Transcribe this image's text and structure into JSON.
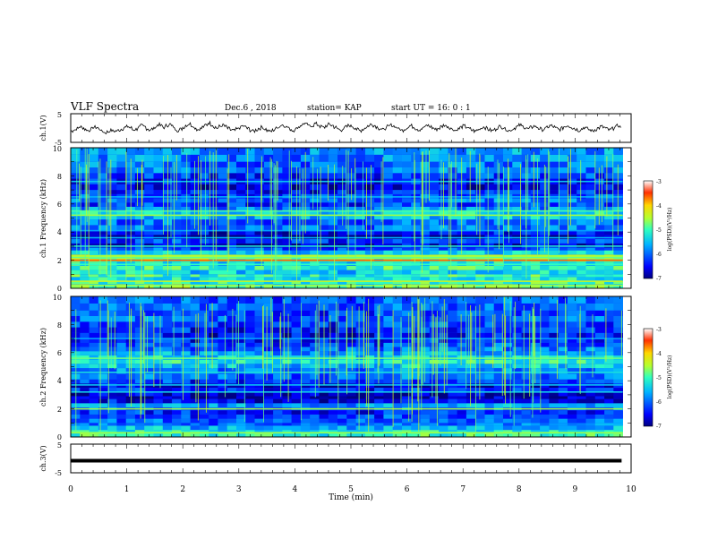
{
  "header": {
    "title": "VLF Spectra",
    "date": "Dec.6 , 2018",
    "station": "station= KAP",
    "start": "start UT = 16: 0 : 1"
  },
  "chart_data": [
    {
      "type": "line",
      "name": "ch1-voltage",
      "ylabel": "ch.1(V)",
      "ylim": [
        -5,
        5
      ],
      "y_ticks": [
        "5",
        "-5"
      ],
      "xlim": [
        0,
        10
      ],
      "x_step_min": 0.05,
      "values": [
        -1.0,
        -0.6,
        -0.2,
        0.4,
        0.1,
        -0.5,
        -0.9,
        -0.3,
        0.3,
        0.2,
        -0.4,
        -1.2,
        -1.6,
        -1.3,
        -0.8,
        -1.1,
        -1.0,
        -0.7,
        -0.3,
        0.2,
        0.5,
        0.1,
        -0.6,
        -0.4,
        0.3,
        0.8,
        0.5,
        -0.2,
        -0.7,
        -0.3,
        0.4,
        1.2,
        0.8,
        0.2,
        0.9,
        1.3,
        0.6,
        -0.3,
        -0.8,
        -0.4,
        0.3,
        1.0,
        1.5,
        0.9,
        0.1,
        -0.5,
        -0.2,
        0.4,
        1.1,
        1.8,
        1.2,
        0.4,
        0.0,
        0.6,
        1.0,
        0.5,
        -0.2,
        -0.7,
        -0.9,
        -0.4,
        0.1,
        0.7,
        0.4,
        -0.2,
        -0.8,
        -1.1,
        -0.6,
        -0.1,
        0.3,
        -0.3,
        -0.9,
        -1.2,
        -0.7,
        -0.1,
        0.5,
        1.1,
        0.8,
        0.3,
        -0.4,
        -0.8,
        -0.3,
        0.4,
        1.0,
        1.6,
        1.2,
        0.6,
        0.9,
        1.5,
        1.1,
        0.5,
        0.2,
        0.8,
        1.3,
        0.9,
        0.3,
        -0.3,
        -0.7,
        -0.2,
        0.4,
        0.9,
        0.6,
        0.1,
        -0.5,
        -0.9,
        -0.4,
        0.2,
        0.8,
        1.3,
        0.9,
        0.4,
        -0.2,
        -0.6,
        -0.1,
        0.5,
        1.0,
        0.7,
        0.2,
        -0.4,
        -0.8,
        -0.3,
        0.3,
        0.8,
        0.4,
        -0.2,
        -0.6,
        -0.2,
        0.4,
        0.9,
        0.5,
        0.0,
        -0.5,
        -0.1,
        0.5,
        1.0,
        0.6,
        0.1,
        -0.4,
        -0.8,
        -0.3,
        0.3,
        0.7,
        0.3,
        -0.3,
        -0.8,
        -1.1,
        -0.6,
        -0.1,
        0.4,
        0.0,
        -0.6,
        -0.9,
        -0.5,
        0.1,
        0.6,
        0.2,
        -0.4,
        -0.9,
        -0.6,
        0.0,
        0.5,
        1.0,
        0.6,
        0.1,
        -0.3,
        0.2,
        0.7,
        0.3,
        -0.2,
        -0.6,
        -0.2,
        0.4,
        0.8,
        0.4,
        -0.1,
        -0.5,
        -0.1,
        0.5,
        0.9,
        0.5,
        0.0,
        -0.4,
        -0.8,
        -0.3,
        0.2,
        -0.2,
        -0.7,
        -1.0,
        -0.5,
        0.0,
        0.5,
        0.2,
        -0.3,
        -0.7,
        -0.2,
        0.4,
        0.8,
        0.4,
        -0.3,
        -0.8,
        -1.0
      ]
    },
    {
      "type": "heatmap",
      "name": "ch1-spectrogram",
      "ylabel": "ch.1 Frequency (kHz)",
      "ylim": [
        0,
        10
      ],
      "xlim": [
        0,
        10
      ],
      "y_ticks": [
        "0",
        "2",
        "4",
        "6",
        "8",
        "10"
      ],
      "colorbar": {
        "label": "log(PSD)(V²/Hz)",
        "range": [
          -7,
          -3
        ],
        "ticks": [
          "-3",
          "-4",
          "-5",
          "-6",
          "-7"
        ]
      },
      "profile_freq_khz": [
        0.0,
        0.3,
        0.5,
        0.8,
        1.0,
        1.3,
        1.6,
        1.9,
        2.1,
        2.4,
        2.7,
        2.9,
        3.2,
        3.5,
        3.8,
        4.1,
        4.5,
        4.9,
        5.2,
        5.5,
        5.8,
        6.1,
        6.4,
        6.7,
        7.0,
        7.4,
        7.8,
        8.2,
        8.6,
        9.0,
        9.5,
        10.0
      ],
      "profile_log_psd": [
        -4.8,
        -5.0,
        -5.2,
        -5.0,
        -5.3,
        -5.0,
        -5.2,
        -4.7,
        -4.6,
        -5.4,
        -6.0,
        -6.6,
        -6.2,
        -6.8,
        -6.4,
        -5.9,
        -6.0,
        -5.5,
        -5.3,
        -5.8,
        -6.2,
        -5.9,
        -6.1,
        -6.3,
        -6.6,
        -6.4,
        -6.2,
        -5.9,
        -5.9,
        -5.8,
        -5.7,
        -5.8
      ],
      "lines": [
        {
          "freq_khz": 0.2,
          "log_psd": -4.6
        },
        {
          "freq_khz": 0.5,
          "log_psd": -4.4
        },
        {
          "freq_khz": 1.7,
          "log_psd": -5.0
        },
        {
          "freq_khz": 2.0,
          "log_psd": -3.6
        },
        {
          "freq_khz": 2.2,
          "log_psd": -4.8
        },
        {
          "freq_khz": 2.3,
          "log_psd": -4.5
        },
        {
          "freq_khz": 3.0,
          "log_psd": -5.2
        },
        {
          "freq_khz": 3.6,
          "log_psd": -5.6
        },
        {
          "freq_khz": 4.1,
          "log_psd": -5.7
        },
        {
          "freq_khz": 5.2,
          "log_psd": -4.6
        },
        {
          "freq_khz": 5.5,
          "log_psd": -4.9
        },
        {
          "freq_khz": 6.5,
          "log_psd": -5.6
        },
        {
          "freq_khz": 7.6,
          "log_psd": -5.5
        }
      ]
    },
    {
      "type": "heatmap",
      "name": "ch2-spectrogram",
      "ylabel": "ch.2 Frequency (kHz)",
      "ylim": [
        0,
        10
      ],
      "xlim": [
        0,
        10
      ],
      "y_ticks": [
        "0",
        "2",
        "4",
        "6",
        "8",
        "10"
      ],
      "colorbar": {
        "label": "log(PSD)(V²/Hz)",
        "range": [
          -7,
          -3
        ],
        "ticks": [
          "-3",
          "-4",
          "-5",
          "-6",
          "-7"
        ]
      },
      "profile_freq_khz": [
        0.0,
        0.3,
        0.5,
        0.8,
        1.0,
        1.3,
        1.6,
        1.9,
        2.1,
        2.4,
        2.7,
        2.9,
        3.2,
        3.5,
        3.8,
        4.1,
        4.5,
        4.9,
        5.2,
        5.5,
        5.8,
        6.1,
        6.4,
        6.7,
        7.0,
        7.4,
        7.8,
        8.2,
        8.6,
        9.0,
        9.5,
        10.0
      ],
      "profile_log_psd": [
        -5.0,
        -5.2,
        -5.5,
        -5.9,
        -6.0,
        -6.1,
        -6.3,
        -6.0,
        -5.6,
        -6.5,
        -6.8,
        -6.7,
        -6.3,
        -6.6,
        -6.2,
        -5.9,
        -5.8,
        -5.4,
        -5.1,
        -5.3,
        -5.6,
        -5.9,
        -6.1,
        -6.3,
        -6.4,
        -6.3,
        -6.2,
        -6.0,
        -6.1,
        -6.0,
        -6.0,
        -6.1
      ],
      "lines": [
        {
          "freq_khz": 0.3,
          "log_psd": -4.6
        },
        {
          "freq_khz": 2.0,
          "log_psd": -4.6
        },
        {
          "freq_khz": 3.2,
          "log_psd": -5.4
        },
        {
          "freq_khz": 3.7,
          "log_psd": -5.5
        },
        {
          "freq_khz": 4.6,
          "log_psd": -5.3
        },
        {
          "freq_khz": 5.6,
          "log_psd": -4.8
        },
        {
          "freq_khz": 7.0,
          "log_psd": -5.7
        }
      ]
    },
    {
      "type": "line",
      "name": "ch3-voltage",
      "ylabel": "ch.3(V)",
      "ylim": [
        -5,
        5
      ],
      "y_ticks": [
        "5",
        "-5"
      ],
      "xlim": [
        0,
        10
      ],
      "values_constant": -0.8
    }
  ],
  "time_axis": {
    "xlabel": "Time (min)",
    "ticks": [
      "0",
      "1",
      "2",
      "3",
      "4",
      "5",
      "6",
      "7",
      "8",
      "9",
      "10"
    ]
  }
}
